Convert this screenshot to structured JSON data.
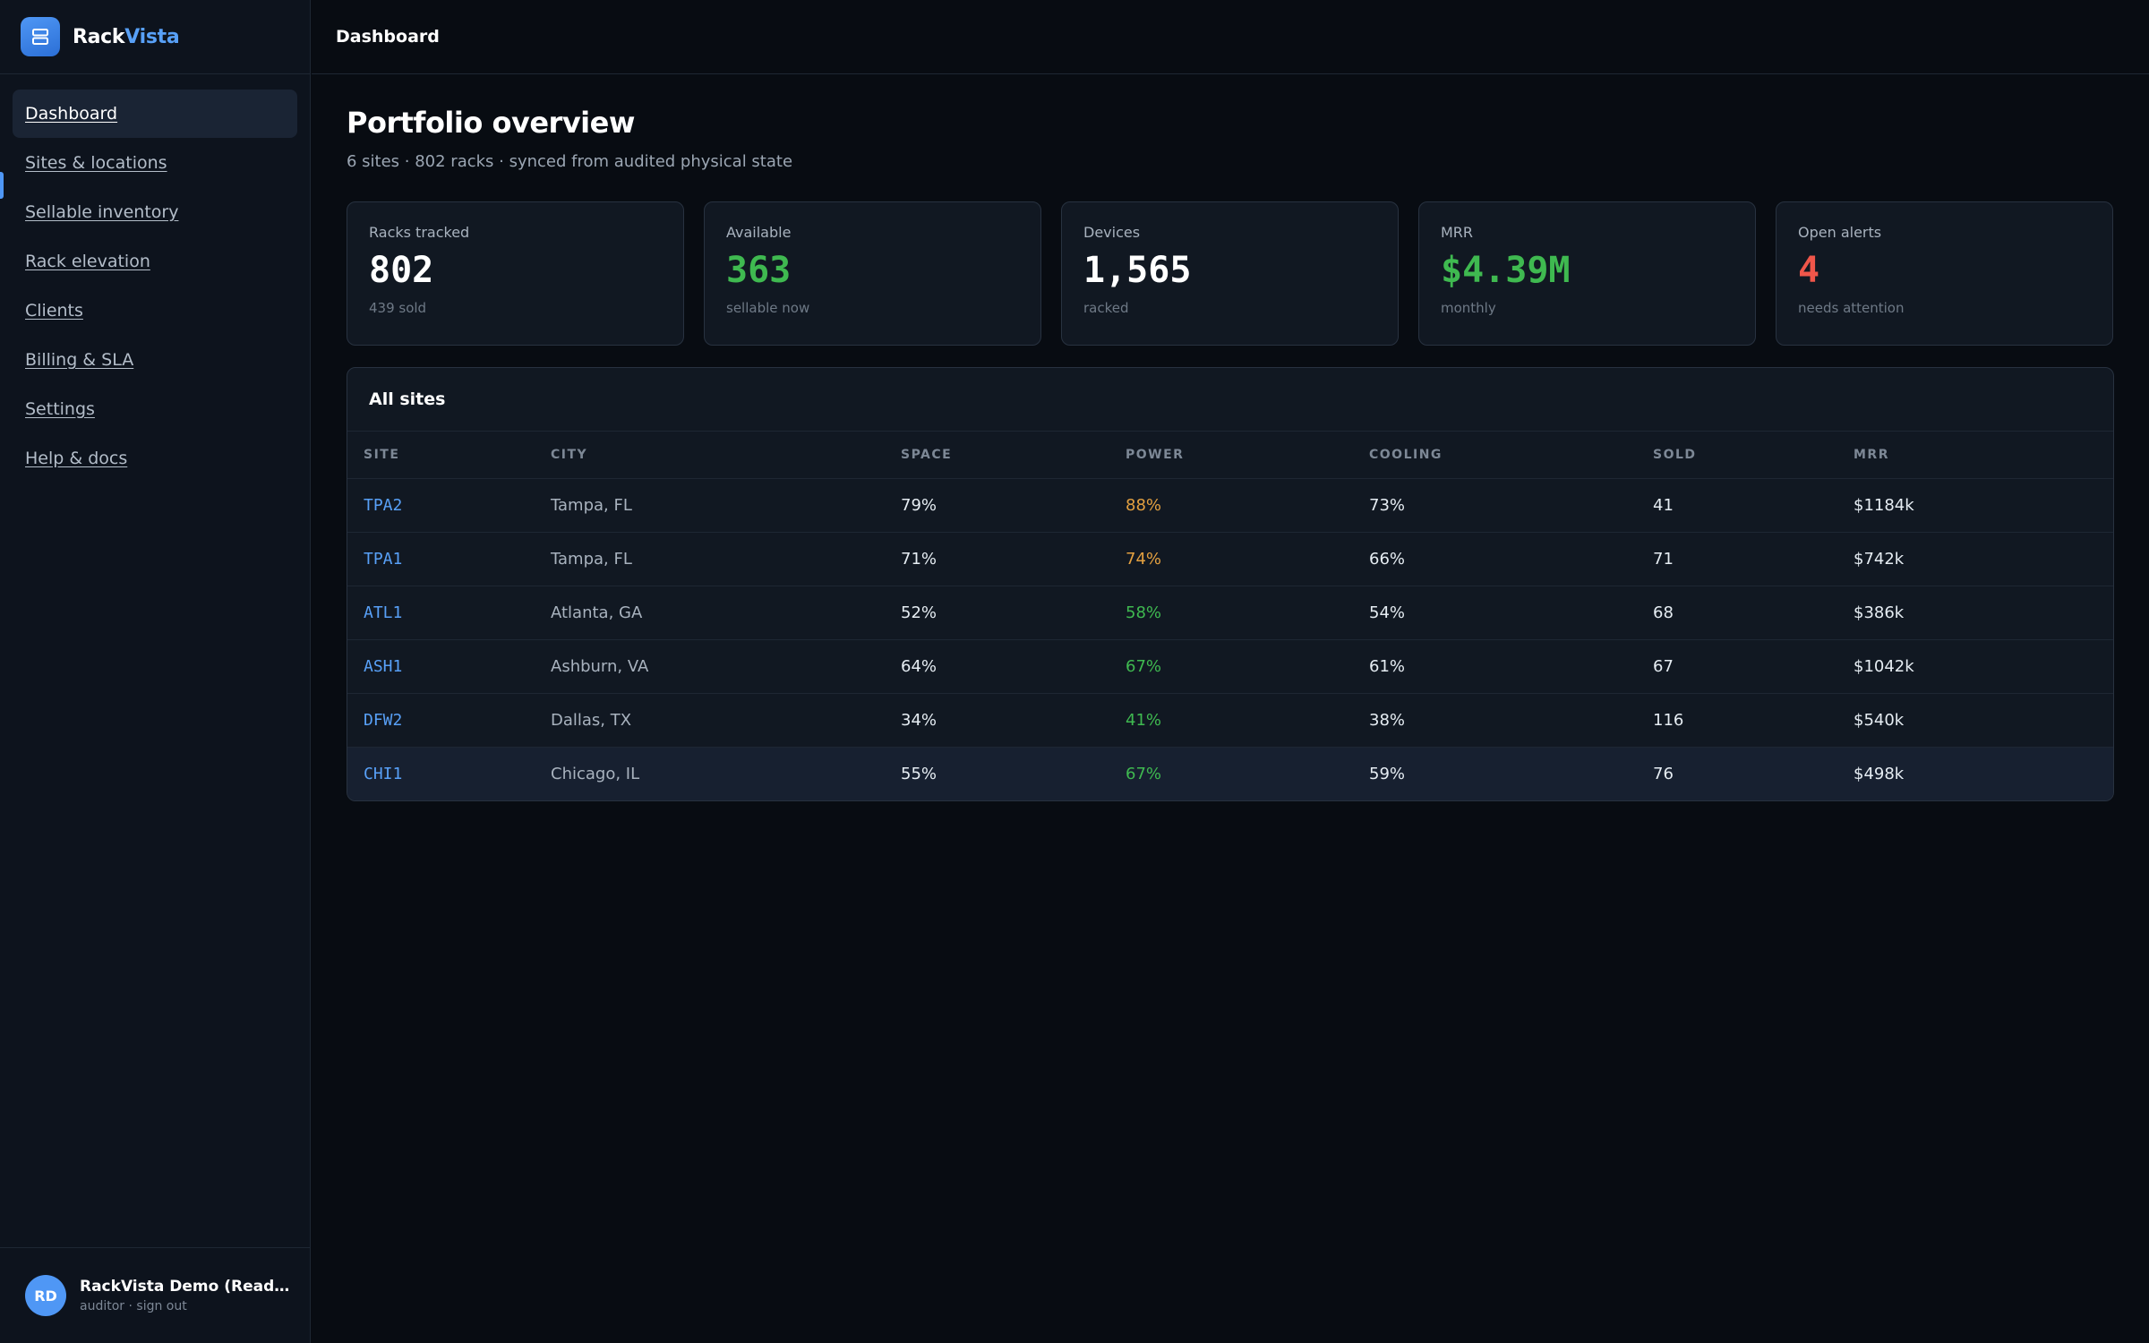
{
  "brand": {
    "name_part1": "Rack",
    "name_part2": "Vista",
    "logo_icon": "server-icon"
  },
  "sidebar": {
    "items": [
      {
        "label": "Dashboard",
        "active": true
      },
      {
        "label": "Sites & locations"
      },
      {
        "label": "Sellable inventory"
      },
      {
        "label": "Rack elevation"
      },
      {
        "label": "Clients"
      },
      {
        "label": "Billing & SLA"
      },
      {
        "label": "Settings"
      },
      {
        "label": "Help & docs"
      }
    ]
  },
  "user": {
    "initials": "RD",
    "name": "RackVista Demo (Read-only)",
    "role": "auditor",
    "separator": " · ",
    "signout": "sign out"
  },
  "topbar": {
    "title": "Dashboard"
  },
  "page": {
    "title": "Portfolio overview",
    "subtitle": "6 sites · 802 racks · synced from audited physical state"
  },
  "cards": [
    {
      "label": "Racks tracked",
      "value": "802",
      "note": "439 sold"
    },
    {
      "label": "Available",
      "value": "363",
      "note": "sellable now"
    },
    {
      "label": "Devices",
      "value": "1,565",
      "note": "racked"
    },
    {
      "label": "MRR",
      "value": "$4.39M",
      "note": "monthly"
    },
    {
      "label": "Open alerts",
      "value": "4",
      "note": "needs attention"
    }
  ],
  "colors": {
    "accent": "#58a0f7",
    "good": "#3fb950",
    "warn": "#e3a040",
    "alert": "#f0564a"
  },
  "sites_table": {
    "title": "All sites",
    "columns": [
      "SITE",
      "CITY",
      "SPACE",
      "POWER",
      "COOLING",
      "SOLD",
      "MRR"
    ],
    "rows": [
      {
        "site": "TPA2",
        "city": "Tampa, FL",
        "space": "79%",
        "power": "88%",
        "cooling": "73%",
        "sold": "41",
        "mrr": "$1184k"
      },
      {
        "site": "TPA1",
        "city": "Tampa, FL",
        "space": "71%",
        "power": "74%",
        "cooling": "66%",
        "sold": "71",
        "mrr": "$742k"
      },
      {
        "site": "ATL1",
        "city": "Atlanta, GA",
        "space": "52%",
        "power": "58%",
        "cooling": "54%",
        "sold": "68",
        "mrr": "$386k"
      },
      {
        "site": "ASH1",
        "city": "Ashburn, VA",
        "space": "64%",
        "power": "67%",
        "cooling": "61%",
        "sold": "67",
        "mrr": "$1042k"
      },
      {
        "site": "DFW2",
        "city": "Dallas, TX",
        "space": "34%",
        "power": "41%",
        "cooling": "38%",
        "sold": "116",
        "mrr": "$540k"
      },
      {
        "site": "CHI1",
        "city": "Chicago, IL",
        "space": "55%",
        "power": "67%",
        "cooling": "59%",
        "sold": "76",
        "mrr": "$498k"
      }
    ]
  }
}
